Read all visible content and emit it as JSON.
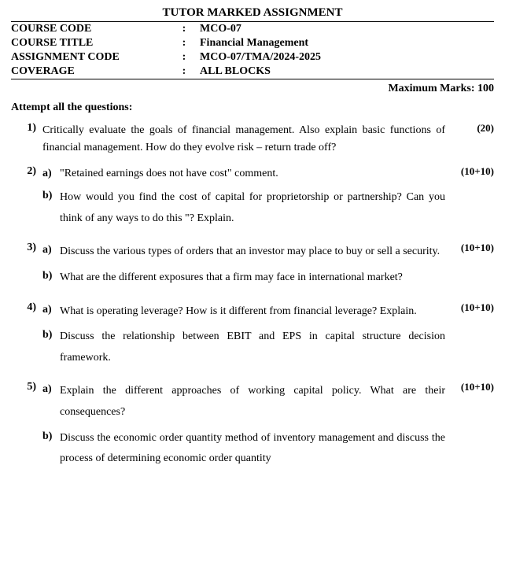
{
  "header": {
    "title": "TUTOR MARKED ASSIGNMENT",
    "meta": [
      {
        "label": "COURSE CODE",
        "value": "MCO-07"
      },
      {
        "label": "COURSE TITLE",
        "value": "Financial Management"
      },
      {
        "label": "ASSIGNMENT CODE",
        "value": "MCO-07/TMA/2024-2025"
      },
      {
        "label": "COVERAGE",
        "value": "ALL BLOCKS"
      }
    ],
    "max_marks": "Maximum Marks: 100",
    "attempt": "Attempt all the questions:"
  },
  "questions": [
    {
      "num": "1)",
      "marks": "(20)",
      "text": "Critically evaluate the goals of financial management. Also explain basic functions of financial management. How do they evolve risk – return trade off?"
    },
    {
      "num": "2)",
      "marks": "(10+10)",
      "subs": [
        {
          "label": "a)",
          "text": "\"Retained earnings does not have cost\" comment."
        },
        {
          "label": "b)",
          "text": "How would you find the cost of capital for proprietorship or partnership? Can you think of any ways to do this \"? Explain."
        }
      ]
    },
    {
      "num": "3)",
      "marks": "(10+10)",
      "subs": [
        {
          "label": "a)",
          "text": "Discuss the various types of orders that an investor may place to buy or sell a security."
        },
        {
          "label": "b)",
          "text": "What are the different exposures that a firm may face in international market?"
        }
      ]
    },
    {
      "num": "4)",
      "marks": "(10+10)",
      "subs": [
        {
          "label": "a)",
          "text": "What is operating leverage? How is it different from financial leverage? Explain."
        },
        {
          "label": "b)",
          "text": "Discuss the relationship between EBIT and EPS in capital structure decision framework."
        }
      ]
    },
    {
      "num": "5)",
      "marks": "(10+10)",
      "subs": [
        {
          "label": "a)",
          "text": "Explain the different approaches of working capital policy. What are their consequences?"
        },
        {
          "label": "b)",
          "text": "Discuss the economic order quantity method of inventory management  and discuss the process of determining economic order quantity"
        }
      ]
    }
  ]
}
